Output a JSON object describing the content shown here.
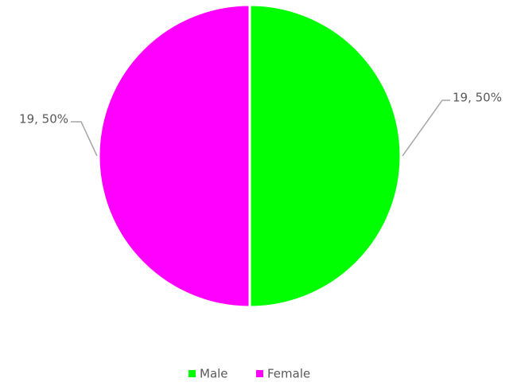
{
  "chart_data": {
    "type": "pie",
    "categories": [
      "Male",
      "Female"
    ],
    "values": [
      19,
      19
    ],
    "value_labels": [
      "19, 50%",
      "19, 50%"
    ],
    "colors": [
      "#00ff00",
      "#ff00ff"
    ],
    "legend": "bottom"
  }
}
